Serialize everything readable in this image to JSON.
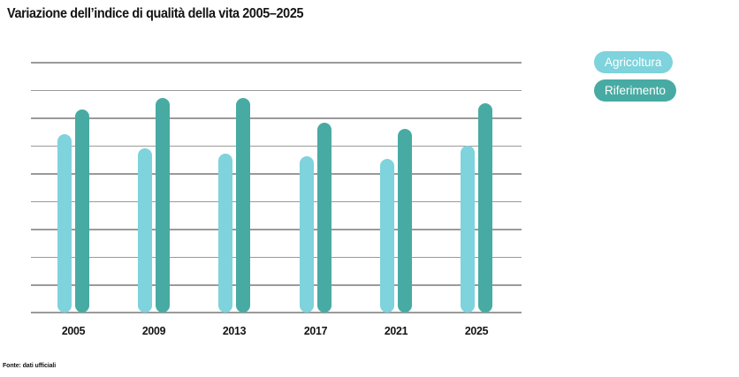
{
  "title": "Variazione dell’indice di qualità della vita 2005–2025",
  "legend": {
    "items": [
      {
        "label": "Agricoltura",
        "color": "#7ed3dc"
      },
      {
        "label": "Riferimento",
        "color": "#47aba3"
      }
    ]
  },
  "footer": {
    "source": "Fonte: dati ufficiali"
  },
  "colors": {
    "background": "#ffffff",
    "gridline": "#9a9a9a",
    "title_text": "#141414",
    "axis_label_text": "#141414",
    "legend_text": "#ffffff",
    "series_agricoltura": "#7ed3dc",
    "series_riferimento": "#47aba3"
  },
  "chart_data": {
    "type": "bar",
    "title": "Variazione dell’indice di qualità della vita 2005–2025",
    "categories": [
      "2005",
      "2009",
      "2013",
      "2017",
      "2021",
      "2025"
    ],
    "series": [
      {
        "name": "Agricoltura",
        "color": "#7ed3dc",
        "values": [
          64,
          59,
          57,
          56,
          55,
          60
        ]
      },
      {
        "name": "Riferimento",
        "color": "#47aba3",
        "values": [
          73,
          77,
          77,
          68,
          66,
          75
        ]
      }
    ],
    "xlabel": "",
    "ylabel": "",
    "ylim": [
      0,
      90
    ],
    "grid_step": 10,
    "grid": true,
    "y_tick_labels_visible": false,
    "legend_position": "top-right",
    "source_note": "Fonte: dati ufficiali"
  }
}
